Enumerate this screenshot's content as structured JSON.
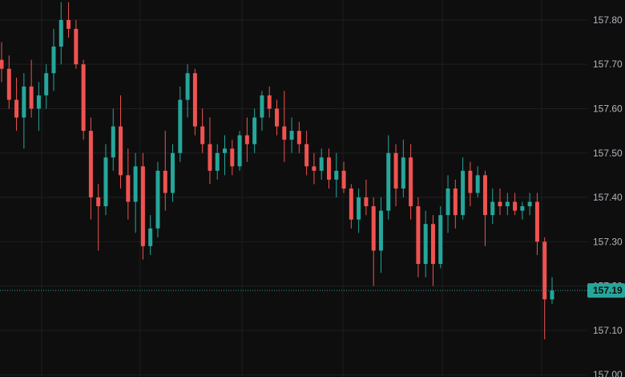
{
  "chart_data": {
    "type": "candlestick",
    "title": "",
    "xlabel": "",
    "ylabel": "",
    "ylim": [
      156.995,
      157.845
    ],
    "grid": true,
    "y_ticks": [
      "157.00",
      "157.10",
      "157.20",
      "157.30",
      "157.40",
      "157.50",
      "157.60",
      "157.70",
      "157.80"
    ],
    "last_price": 157.19,
    "last_price_label": "157.19",
    "colors": {
      "up": "#26a69a",
      "down": "#ef5350",
      "background": "#0e0e0e",
      "grid": "#1f1f1f"
    },
    "candles": [
      [
        157.71,
        157.75,
        157.66,
        157.69
      ],
      [
        157.69,
        157.72,
        157.6,
        157.62
      ],
      [
        157.62,
        157.67,
        157.55,
        157.58
      ],
      [
        157.58,
        157.68,
        157.51,
        157.65
      ],
      [
        157.65,
        157.71,
        157.58,
        157.6
      ],
      [
        157.6,
        157.66,
        157.55,
        157.63
      ],
      [
        157.63,
        157.7,
        157.6,
        157.68
      ],
      [
        157.68,
        157.78,
        157.64,
        157.74
      ],
      [
        157.74,
        157.84,
        157.7,
        157.8
      ],
      [
        157.8,
        157.84,
        157.76,
        157.78
      ],
      [
        157.78,
        157.8,
        157.69,
        157.7
      ],
      [
        157.7,
        157.71,
        157.53,
        157.55
      ],
      [
        157.55,
        157.58,
        157.35,
        157.4
      ],
      [
        157.4,
        157.43,
        157.28,
        157.38
      ],
      [
        157.38,
        157.52,
        157.36,
        157.49
      ],
      [
        157.49,
        157.6,
        157.46,
        157.56
      ],
      [
        157.56,
        157.63,
        157.42,
        157.45
      ],
      [
        157.45,
        157.51,
        157.35,
        157.39
      ],
      [
        157.39,
        157.5,
        157.32,
        157.47
      ],
      [
        157.47,
        157.5,
        157.26,
        157.29
      ],
      [
        157.29,
        157.36,
        157.27,
        157.33
      ],
      [
        157.33,
        157.48,
        157.31,
        157.46
      ],
      [
        157.46,
        157.55,
        157.37,
        157.41
      ],
      [
        157.41,
        157.52,
        157.39,
        157.5
      ],
      [
        157.5,
        157.65,
        157.48,
        157.62
      ],
      [
        157.62,
        157.7,
        157.58,
        157.68
      ],
      [
        157.68,
        157.69,
        157.54,
        157.56
      ],
      [
        157.56,
        157.6,
        157.5,
        157.52
      ],
      [
        157.52,
        157.58,
        157.43,
        157.46
      ],
      [
        157.46,
        157.52,
        157.44,
        157.5
      ],
      [
        157.5,
        157.54,
        157.45,
        157.51
      ],
      [
        157.51,
        157.53,
        157.45,
        157.47
      ],
      [
        157.47,
        157.55,
        157.46,
        157.54
      ],
      [
        157.54,
        157.58,
        157.48,
        157.52
      ],
      [
        157.52,
        157.6,
        157.5,
        157.58
      ],
      [
        157.58,
        157.64,
        157.55,
        157.63
      ],
      [
        157.63,
        157.65,
        157.58,
        157.6
      ],
      [
        157.6,
        157.62,
        157.54,
        157.56
      ],
      [
        157.56,
        157.64,
        157.48,
        157.53
      ],
      [
        157.53,
        157.58,
        157.5,
        157.55
      ],
      [
        157.55,
        157.57,
        157.5,
        157.52
      ],
      [
        157.52,
        157.55,
        157.45,
        157.47
      ],
      [
        157.47,
        157.5,
        157.43,
        157.46
      ],
      [
        157.46,
        157.51,
        157.44,
        157.49
      ],
      [
        157.49,
        157.51,
        157.42,
        157.44
      ],
      [
        157.44,
        157.5,
        157.4,
        157.46
      ],
      [
        157.46,
        157.48,
        157.41,
        157.42
      ],
      [
        157.42,
        157.43,
        157.33,
        157.35
      ],
      [
        157.35,
        157.42,
        157.32,
        157.4
      ],
      [
        157.4,
        157.44,
        157.36,
        157.38
      ],
      [
        157.38,
        157.4,
        157.2,
        157.28
      ],
      [
        157.28,
        157.4,
        157.23,
        157.37
      ],
      [
        157.37,
        157.54,
        157.35,
        157.5
      ],
      [
        157.5,
        157.52,
        157.38,
        157.42
      ],
      [
        157.42,
        157.53,
        157.4,
        157.49
      ],
      [
        157.49,
        157.52,
        157.35,
        157.38
      ],
      [
        157.38,
        157.4,
        157.22,
        157.25
      ],
      [
        157.25,
        157.37,
        157.22,
        157.34
      ],
      [
        157.34,
        157.36,
        157.2,
        157.25
      ],
      [
        157.25,
        157.38,
        157.24,
        157.36
      ],
      [
        157.36,
        157.45,
        157.32,
        157.42
      ],
      [
        157.42,
        157.44,
        157.33,
        157.36
      ],
      [
        157.36,
        157.49,
        157.35,
        157.46
      ],
      [
        157.46,
        157.48,
        157.38,
        157.41
      ],
      [
        157.41,
        157.47,
        157.4,
        157.45
      ],
      [
        157.45,
        157.46,
        157.29,
        157.36
      ],
      [
        157.36,
        157.42,
        157.34,
        157.39
      ],
      [
        157.39,
        157.42,
        157.36,
        157.38
      ],
      [
        157.38,
        157.41,
        157.36,
        157.39
      ],
      [
        157.39,
        157.41,
        157.36,
        157.37
      ],
      [
        157.37,
        157.39,
        157.35,
        157.38
      ],
      [
        157.38,
        157.41,
        157.36,
        157.39
      ],
      [
        157.39,
        157.41,
        157.27,
        157.3
      ],
      [
        157.3,
        157.31,
        157.08,
        157.17
      ],
      [
        157.17,
        157.22,
        157.16,
        157.19
      ]
    ]
  }
}
